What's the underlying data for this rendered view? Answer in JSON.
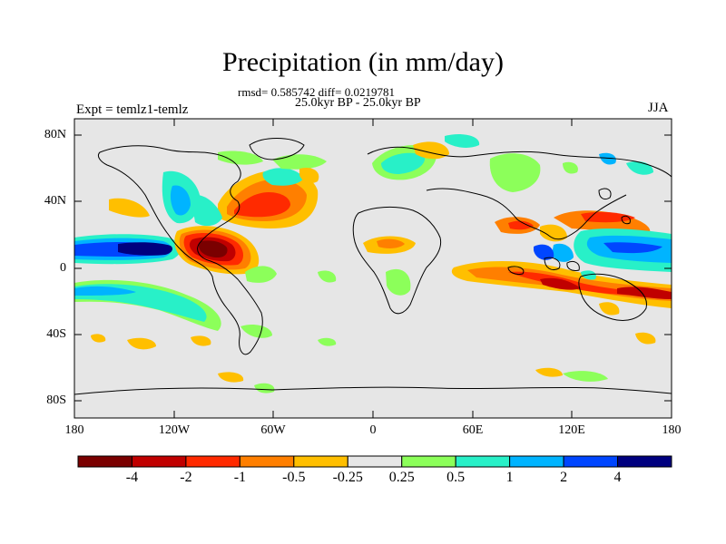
{
  "header": {
    "title": "Precipitation (in mm/day)",
    "stats": "rmsd= 0.585742 diff= 0.0219781",
    "period": "25.0kyr BP - 25.0kyr BP",
    "experiment": "Expt = temlz1-temlz",
    "season": "JJA"
  },
  "axes": {
    "lat_labels": [
      "80N",
      "40N",
      "0",
      "40S",
      "80S"
    ],
    "lon_labels": [
      "180",
      "120W",
      "60W",
      "0",
      "60E",
      "120E",
      "180"
    ]
  },
  "colorbar": {
    "colors": [
      "#7a0000",
      "#c00000",
      "#ff2a00",
      "#ff7f00",
      "#ffbf00",
      "#e6e6e6",
      "#8cff5a",
      "#28f0c8",
      "#00b4ff",
      "#0046ff",
      "#00007f"
    ],
    "labels": [
      "-4",
      "-2",
      "-1",
      "-0.5",
      "-0.25",
      "0.25",
      "0.5",
      "1",
      "2",
      "4"
    ]
  }
}
